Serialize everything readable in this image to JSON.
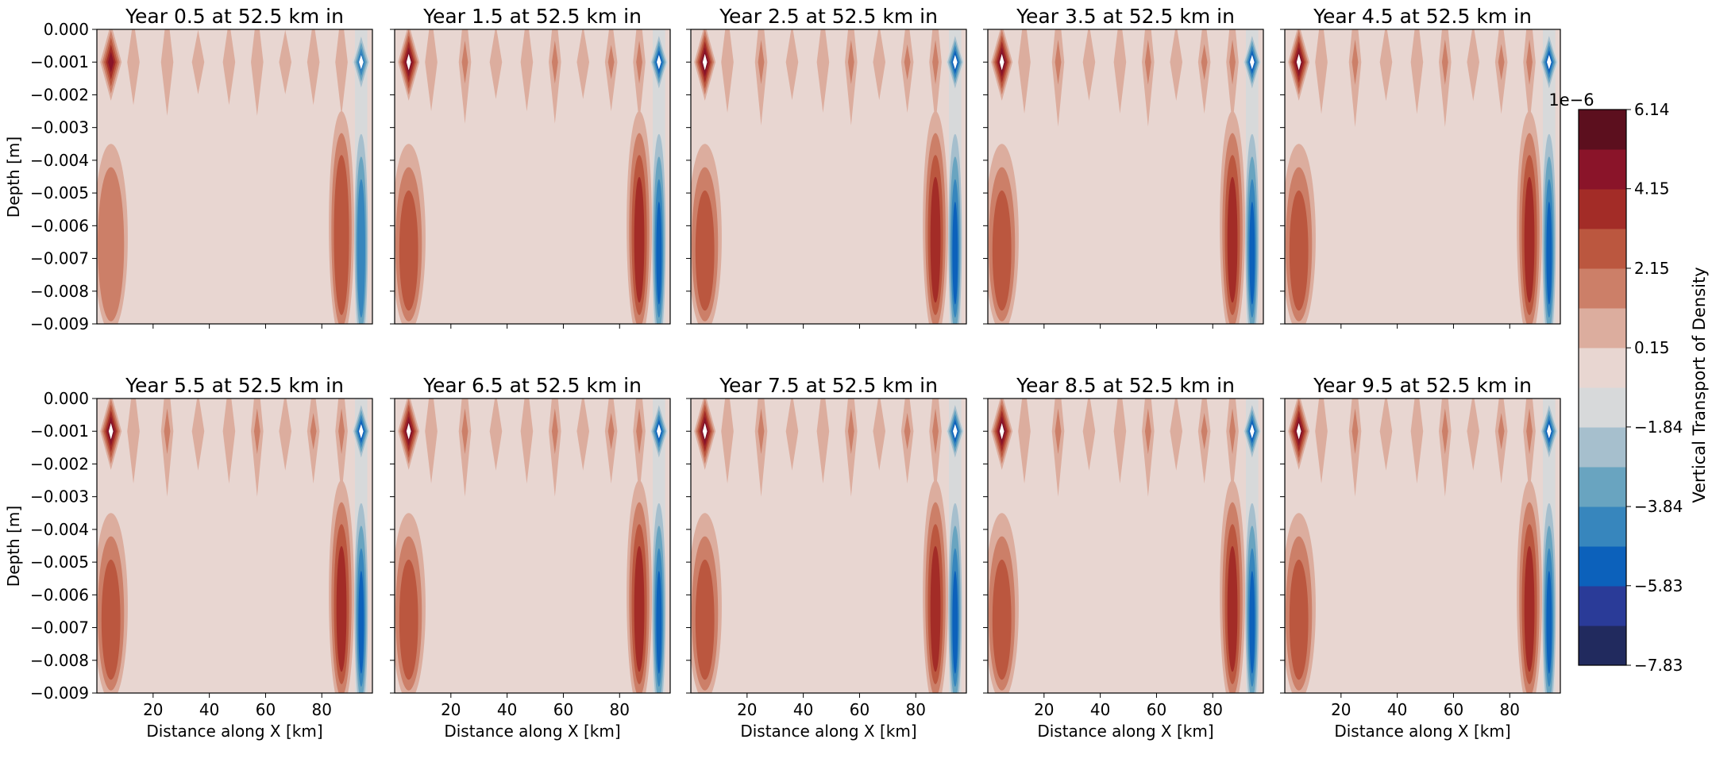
{
  "chart_data": {
    "type": "heatmap",
    "layout_rows": 2,
    "layout_cols": 5,
    "panels": [
      {
        "title": "Year 0.5 at 52.5 km in",
        "intensity": 0.55
      },
      {
        "title": "Year 1.5 at 52.5 km in",
        "intensity": 0.85
      },
      {
        "title": "Year 2.5 at 52.5 km in",
        "intensity": 0.92
      },
      {
        "title": "Year 3.5 at 52.5 km in",
        "intensity": 0.96
      },
      {
        "title": "Year 4.5 at 52.5 km in",
        "intensity": 0.98
      },
      {
        "title": "Year 5.5 at 52.5 km in",
        "intensity": 1.0
      },
      {
        "title": "Year 6.5 at 52.5 km in",
        "intensity": 1.0
      },
      {
        "title": "Year 7.5 at 52.5 km in",
        "intensity": 1.0
      },
      {
        "title": "Year 8.5 at 52.5 km in",
        "intensity": 1.0
      },
      {
        "title": "Year 9.5 at 52.5 km in",
        "intensity": 1.0
      }
    ],
    "xlabel": "Distance along X [km]",
    "ylabel": "Depth [m]",
    "xlim": [
      0,
      98
    ],
    "ylim": [
      -0.009,
      0.0
    ],
    "x_ticks": [
      20,
      40,
      60,
      80
    ],
    "x_tick_labels": [
      "20",
      "40",
      "60",
      "80"
    ],
    "y_ticks": [
      0.0,
      -0.001,
      -0.002,
      -0.003,
      -0.004,
      -0.005,
      -0.006,
      -0.007,
      -0.008,
      -0.009
    ],
    "y_tick_labels": [
      "0.000",
      "−0.001",
      "−0.002",
      "−0.003",
      "−0.004",
      "−0.005",
      "−0.006",
      "−0.007",
      "−0.008",
      "−0.009"
    ],
    "features": {
      "top_row_depth": -0.001,
      "strong_positive_core_x": 5,
      "strong_negative_core_x": 94,
      "positive_column_x": 87,
      "negative_column_x": 94,
      "left_column_x": 5,
      "top_row_lobes_x": [
        5,
        13,
        25,
        36,
        47,
        57,
        67,
        77,
        87,
        94
      ]
    },
    "colorbar": {
      "label": "Vertical Transport of Density",
      "scale_label": "1e−6",
      "min": -7.83,
      "max": 6.14,
      "tick_values": [
        6.14,
        4.15,
        2.15,
        0.15,
        -1.84,
        -3.84,
        -5.83,
        -7.83
      ],
      "tick_labels": [
        "6.14",
        "4.15",
        "2.15",
        "0.15",
        "−1.84",
        "−3.84",
        "−5.83",
        "−7.83"
      ],
      "levels": [
        "#212a5e",
        "#2a3b98",
        "#0c61bb",
        "#3786bd",
        "#69a4c0",
        "#a6bfcd",
        "#d7d9da",
        "#e8d6d1",
        "#dcad9e",
        "#cc7f68",
        "#bb573f",
        "#a32c27",
        "#8a1429",
        "#5c0f1e"
      ]
    },
    "colors": {
      "background_level": "#e8d6d1",
      "white_core": "#ffffff"
    }
  }
}
